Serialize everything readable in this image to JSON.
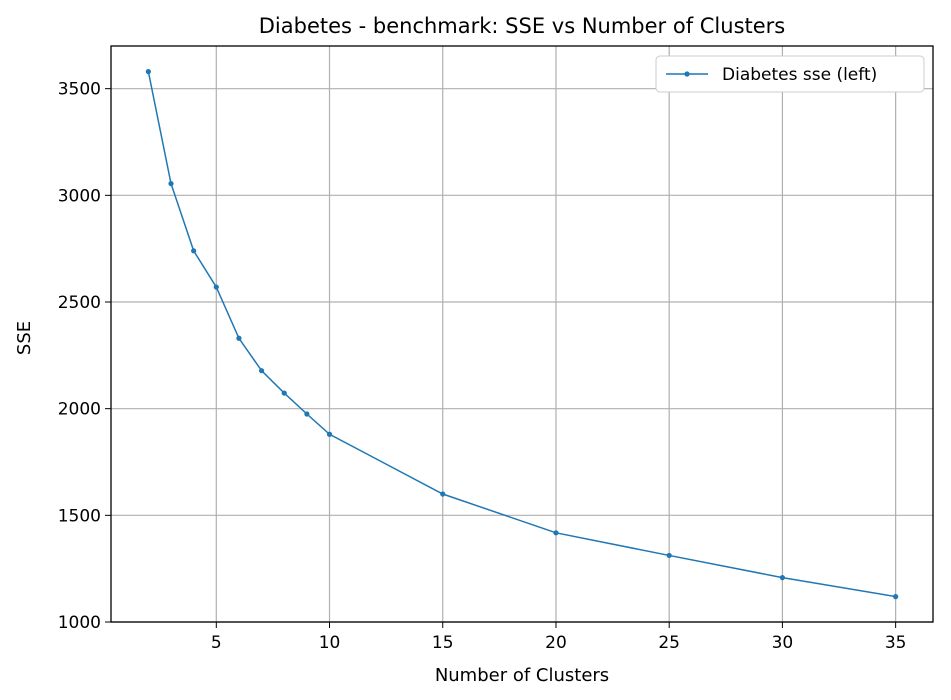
{
  "chart_data": {
    "type": "line",
    "title": "Diabetes - benchmark: SSE vs Number of Clusters",
    "xlabel": "Number of Clusters",
    "ylabel": "SSE",
    "xlim": [
      0.35,
      36.65
    ],
    "ylim": [
      1000,
      3700
    ],
    "xticks": [
      5,
      10,
      15,
      20,
      25,
      30,
      35
    ],
    "yticks": [
      1000,
      1500,
      2000,
      2500,
      3000,
      3500
    ],
    "grid": true,
    "legend_position": "top-right",
    "series": [
      {
        "name": "Diabetes sse (left)",
        "color": "#1f77b4",
        "x": [
          2,
          3,
          4,
          5,
          6,
          7,
          8,
          9,
          10,
          15,
          20,
          25,
          30,
          35
        ],
        "y": [
          3580,
          3055,
          2740,
          2570,
          2330,
          2178,
          2073,
          1975,
          1880,
          1600,
          1418,
          1312,
          1208,
          1119
        ]
      }
    ]
  }
}
